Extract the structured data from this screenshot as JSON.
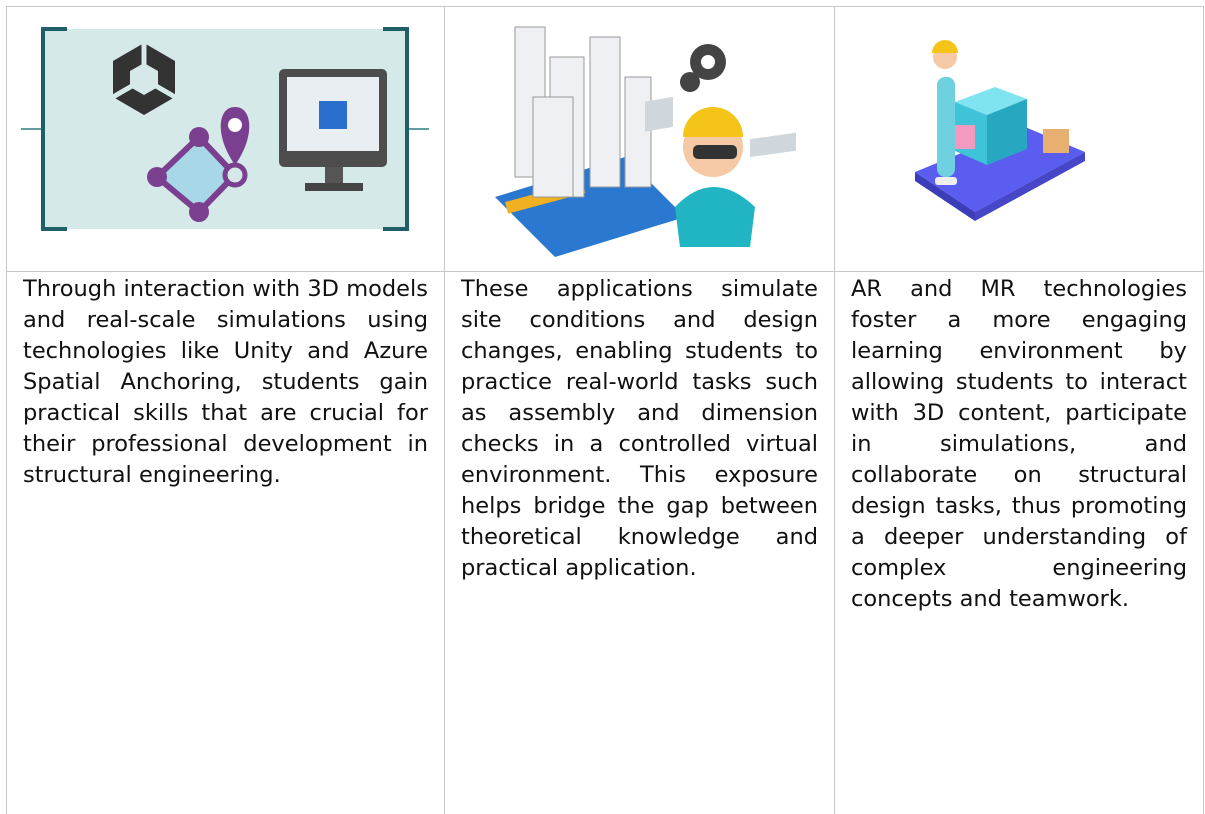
{
  "table": {
    "cells": [
      "Through interaction with 3D models and real-scale simulations using technologies like Unity and Azure Spatial Anchoring, students gain practical skills that are crucial for their professional development in structural engineering.",
      "These applications simulate site conditions and design changes, enabling students to practice real-world tasks such as assembly and dimension checks in a controlled virtual environment. This exposure helps bridge the gap between theoretical knowledge and practical application.",
      "AR and MR technologies foster a more engaging learning environment by allowing students to interact with 3D content, participate in simulations, and collaborate on structural design tasks, thus promoting a deeper understanding of complex engineering concepts and teamwork."
    ]
  }
}
